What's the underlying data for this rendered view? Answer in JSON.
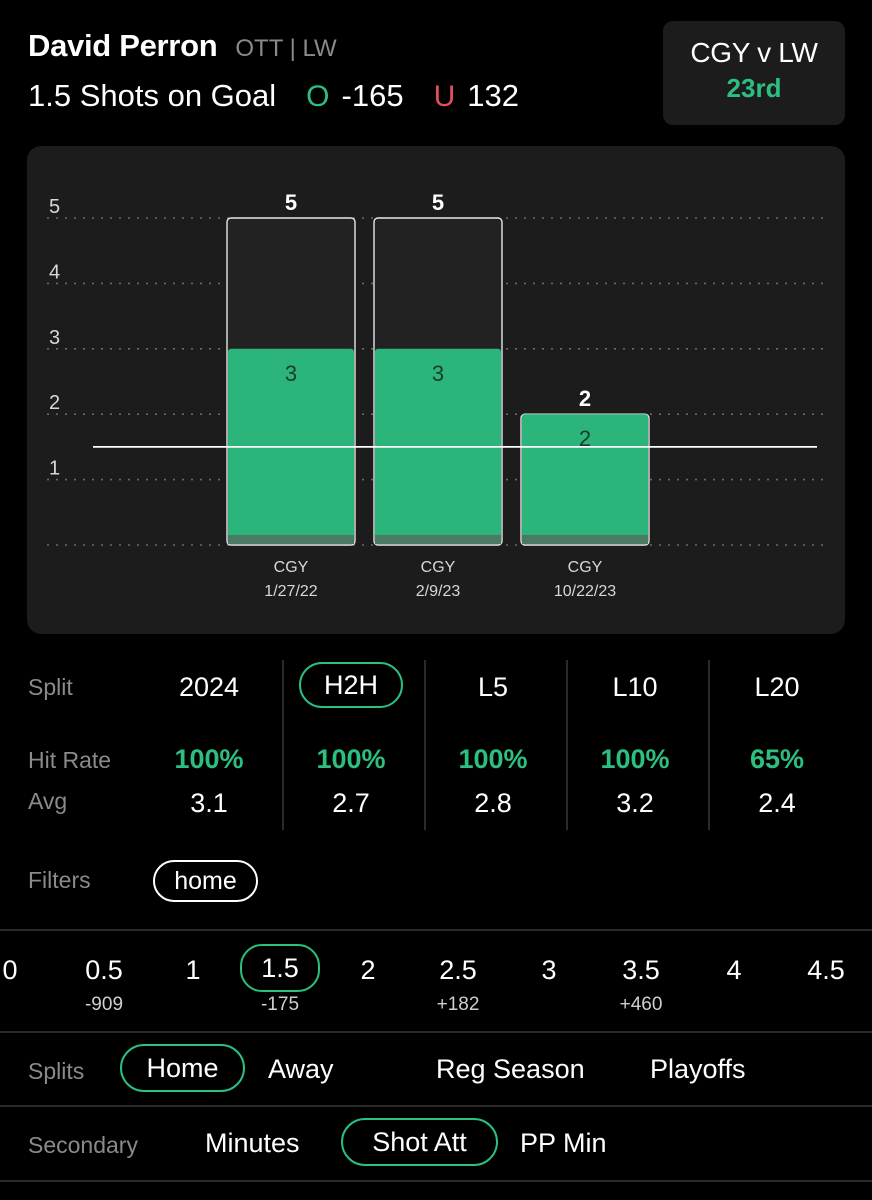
{
  "player": {
    "name": "David Perron",
    "team_pos": "OTT | LW",
    "market": "1.5 Shots on Goal",
    "over_mark": "O",
    "over_odds": "-165",
    "under_mark": "U",
    "under_odds": "132"
  },
  "matchup": {
    "title": "CGY v LW",
    "rank": "23rd"
  },
  "chart_data": {
    "type": "bar",
    "categories": [
      "CGY\n1/27/22",
      "CGY\n2/9/23",
      "CGY\n10/22/23"
    ],
    "opponents": [
      "CGY",
      "CGY",
      "CGY"
    ],
    "dates": [
      "1/27/22",
      "2/9/23",
      "10/22/23"
    ],
    "series": [
      {
        "values": [
          5,
          5,
          2
        ]
      },
      {
        "values": [
          3,
          3,
          2
        ]
      }
    ],
    "total_labels": [
      "5",
      "5",
      "2"
    ],
    "inner_labels": [
      "3",
      "3",
      "2"
    ],
    "y_ticks": [
      1,
      2,
      3,
      4,
      5
    ],
    "ylim": [
      0,
      5.5
    ],
    "line_value": 1.5,
    "grid": true,
    "colors": {
      "highlight": "#2bb57a",
      "outline": "#ffffff",
      "line": "#ffffff"
    }
  },
  "splits_table": {
    "label_split": "Split",
    "label_hit": "Hit Rate",
    "label_avg": "Avg",
    "columns": [
      {
        "split": "2024",
        "hit": "100%",
        "avg": "3.1",
        "active": false
      },
      {
        "split": "H2H",
        "hit": "100%",
        "avg": "2.7",
        "active": true
      },
      {
        "split": "L5",
        "hit": "100%",
        "avg": "2.8",
        "active": false
      },
      {
        "split": "L10",
        "hit": "100%",
        "avg": "3.2",
        "active": false
      },
      {
        "split": "L20",
        "hit": "65%",
        "avg": "2.4",
        "active": false
      }
    ]
  },
  "filters": {
    "label": "Filters",
    "chip": "home"
  },
  "ladder": [
    {
      "value": "0",
      "odds": ""
    },
    {
      "value": "0.5",
      "odds": "-909"
    },
    {
      "value": "1",
      "odds": ""
    },
    {
      "value": "1.5",
      "odds": "-175"
    },
    {
      "value": "2",
      "odds": ""
    },
    {
      "value": "2.5",
      "odds": "+182"
    },
    {
      "value": "3",
      "odds": ""
    },
    {
      "value": "3.5",
      "odds": "+460"
    },
    {
      "value": "4",
      "odds": ""
    },
    {
      "value": "4.5",
      "odds": ""
    }
  ],
  "splits": {
    "label": "Splits",
    "options": [
      "Home",
      "Away",
      "Reg Season",
      "Playoffs"
    ]
  },
  "secondary": {
    "label": "Secondary",
    "options": [
      "Minutes",
      "Shot Att",
      "PP Min"
    ]
  },
  "colors": {
    "accent": "#2bc07f",
    "under": "#e0505c",
    "card": "#1c1c1c"
  }
}
